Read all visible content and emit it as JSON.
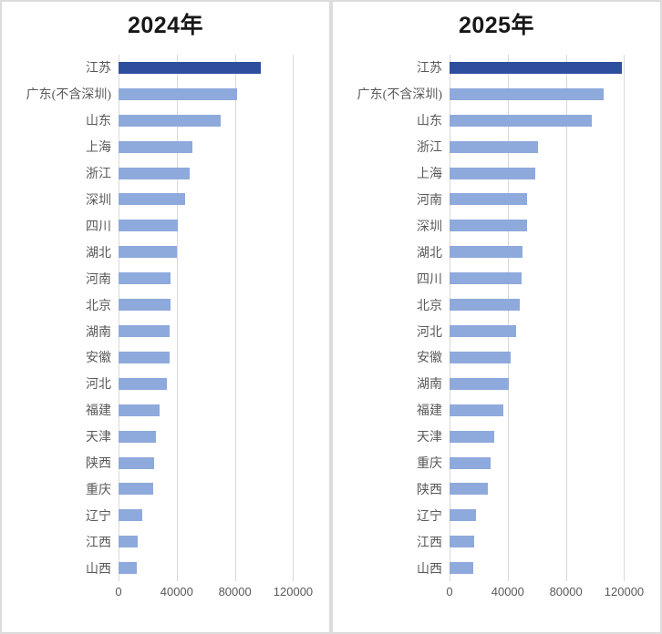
{
  "colors": {
    "bar_light": "#8EA9DC",
    "bar_dark": "#2E4F9E",
    "gridline": "#D9D9D9",
    "panel_border": "#DCDCDC",
    "label_text": "#595959",
    "title_text": "#171717",
    "background": "#FFFFFF"
  },
  "chart_data": [
    {
      "type": "bar",
      "orientation": "horizontal",
      "title": "2024年",
      "categories": [
        "江苏",
        "广东(不含深圳)",
        "山东",
        "上海",
        "浙江",
        "深圳",
        "四川",
        "湖北",
        "河南",
        "北京",
        "湖南",
        "安徽",
        "河北",
        "福建",
        "天津",
        "陕西",
        "重庆",
        "辽宁",
        "江西",
        "山西"
      ],
      "values": [
        97500,
        81500,
        70000,
        50500,
        49000,
        45500,
        41000,
        40000,
        36000,
        36000,
        35000,
        35000,
        33500,
        28500,
        26000,
        24500,
        24000,
        16000,
        13000,
        12500
      ],
      "highlight_index": 0,
      "ticks": [
        0,
        40000,
        80000,
        120000
      ],
      "tick_labels": [
        "0",
        "40000",
        "80000",
        "120000"
      ],
      "xlim": [
        0,
        136000
      ],
      "grid": true,
      "legend": false
    },
    {
      "type": "bar",
      "orientation": "horizontal",
      "title": "2025年",
      "categories": [
        "江苏",
        "广东(不含深圳)",
        "山东",
        "浙江",
        "上海",
        "河南",
        "深圳",
        "湖北",
        "四川",
        "北京",
        "河北",
        "安徽",
        "湖南",
        "福建",
        "天津",
        "重庆",
        "陕西",
        "辽宁",
        "江西",
        "山西"
      ],
      "values": [
        118500,
        106000,
        97500,
        60500,
        59000,
        53500,
        53000,
        50000,
        49500,
        48000,
        45500,
        42000,
        40500,
        37000,
        30500,
        28500,
        26500,
        18000,
        17000,
        16000
      ],
      "highlight_index": 0,
      "ticks": [
        0,
        40000,
        80000,
        120000
      ],
      "tick_labels": [
        "0",
        "40000",
        "80000",
        "120000"
      ],
      "xlim": [
        0,
        136000
      ],
      "grid": true,
      "legend": false
    }
  ]
}
